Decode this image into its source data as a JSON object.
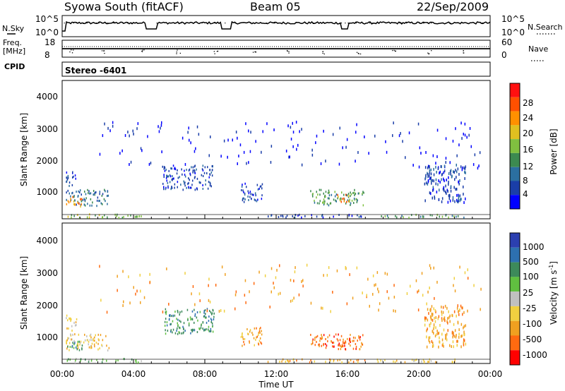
{
  "header": {
    "station": "Syowa South (fitACF)",
    "beam": "Beam 05",
    "date": "22/Sep/2009"
  },
  "noise_panel": {
    "left_label": "N.Sky",
    "right_label": "N.Search",
    "left_ticks": [
      "10^5",
      "10^0"
    ],
    "right_ticks": [
      "10^5",
      "10^0"
    ]
  },
  "freq_panel": {
    "left_label_1": "Freq.",
    "left_label_2": "[MHz]",
    "right_label": "Nave",
    "left_ticks": [
      "18",
      "8"
    ],
    "right_ticks": [
      "60",
      "0"
    ]
  },
  "cpid": {
    "label": "CPID",
    "mode": "Stereo -6401"
  },
  "power_panel": {
    "ylabel": "Slant Range [km]",
    "yticks": [
      "1000",
      "2000",
      "3000",
      "4000"
    ],
    "colorbar_label": "Power [dB]",
    "colorbar_ticks": [
      "4",
      "8",
      "12",
      "16",
      "20",
      "24",
      "28"
    ],
    "colorbar_colors": [
      "#0000ff",
      "#1a3ea8",
      "#2b6fa0",
      "#3c8a50",
      "#80c040",
      "#e0c020",
      "#ff9000",
      "#ff5000",
      "#ff1010"
    ]
  },
  "velocity_panel": {
    "ylabel": "Slant Range [km]",
    "yticks": [
      "1000",
      "2000",
      "3000",
      "4000"
    ],
    "colorbar_label": "Velocity [m s",
    "colorbar_label_sup": "-1",
    "colorbar_label_end": "]",
    "colorbar_ticks": [
      "1000",
      "500",
      "100",
      "25",
      "-25",
      "-100",
      "-500",
      "-1000"
    ],
    "colorbar_colors": [
      "#2b3fb0",
      "#2d70b0",
      "#3d8a5a",
      "#60c040",
      "#c0c0c0",
      "#f0d040",
      "#f0a020",
      "#ff6a10",
      "#ff0000"
    ]
  },
  "x_axis": {
    "label": "Time UT",
    "ticks": [
      "00:00",
      "04:00",
      "08:00",
      "12:00",
      "16:00",
      "20:00",
      "00:00"
    ]
  },
  "chart_data": {
    "type": "heatmap",
    "x_range_hours": [
      0,
      24
    ],
    "y_range_km": [
      180,
      4500
    ],
    "power_clusters": [
      {
        "t0": 0.2,
        "t1": 2.6,
        "r0": 580,
        "r1": 1100,
        "level": 2
      },
      {
        "t0": 0.2,
        "t1": 1.1,
        "r0": 560,
        "r1": 900,
        "level": 6
      },
      {
        "t0": 0.2,
        "t1": 0.8,
        "r0": 1200,
        "r1": 1700,
        "level": 1
      },
      {
        "t0": 0.2,
        "t1": 4.5,
        "r0": 200,
        "r1": 320,
        "level": 4
      },
      {
        "t0": 5.6,
        "t1": 8.5,
        "r0": 1100,
        "r1": 1900,
        "level": 1
      },
      {
        "t0": 10.0,
        "t1": 11.2,
        "r0": 700,
        "r1": 1300,
        "level": 1
      },
      {
        "t0": 13.9,
        "t1": 16.9,
        "r0": 600,
        "r1": 1100,
        "level": 3
      },
      {
        "t0": 15.4,
        "t1": 16.2,
        "r0": 700,
        "r1": 950,
        "level": 6
      },
      {
        "t0": 11.5,
        "t1": 17.0,
        "r0": 200,
        "r1": 300,
        "level": 1
      },
      {
        "t0": 20.3,
        "t1": 22.6,
        "r0": 700,
        "r1": 2000,
        "level": 1
      },
      {
        "t0": 17.5,
        "t1": 22.5,
        "r0": 200,
        "r1": 300,
        "level": 3
      },
      {
        "t0": 2.0,
        "t1": 23.5,
        "r0": 1800,
        "r1": 3300,
        "level": 0
      }
    ],
    "velocity_clusters": [
      {
        "t0": 0.2,
        "t1": 2.6,
        "r0": 580,
        "r1": 1100,
        "level": 5
      },
      {
        "t0": 0.2,
        "t1": 1.1,
        "r0": 560,
        "r1": 900,
        "level": 2
      },
      {
        "t0": 0.2,
        "t1": 0.8,
        "r0": 1200,
        "r1": 1700,
        "level": 5
      },
      {
        "t0": 0.2,
        "t1": 4.5,
        "r0": 200,
        "r1": 320,
        "level": 3
      },
      {
        "t0": 5.6,
        "t1": 8.5,
        "r0": 1100,
        "r1": 1900,
        "level": 2
      },
      {
        "t0": 10.0,
        "t1": 11.2,
        "r0": 700,
        "r1": 1300,
        "level": 6
      },
      {
        "t0": 13.9,
        "t1": 16.9,
        "r0": 600,
        "r1": 1100,
        "level": 7
      },
      {
        "t0": 15.4,
        "t1": 16.2,
        "r0": 700,
        "r1": 950,
        "level": 7
      },
      {
        "t0": 11.5,
        "t1": 17.0,
        "r0": 200,
        "r1": 300,
        "level": 6
      },
      {
        "t0": 20.3,
        "t1": 22.6,
        "r0": 700,
        "r1": 2000,
        "level": 6
      },
      {
        "t0": 17.5,
        "t1": 22.5,
        "r0": 200,
        "r1": 300,
        "level": 5
      },
      {
        "t0": 2.0,
        "t1": 23.5,
        "r0": 1800,
        "r1": 3300,
        "level": 6
      }
    ]
  }
}
